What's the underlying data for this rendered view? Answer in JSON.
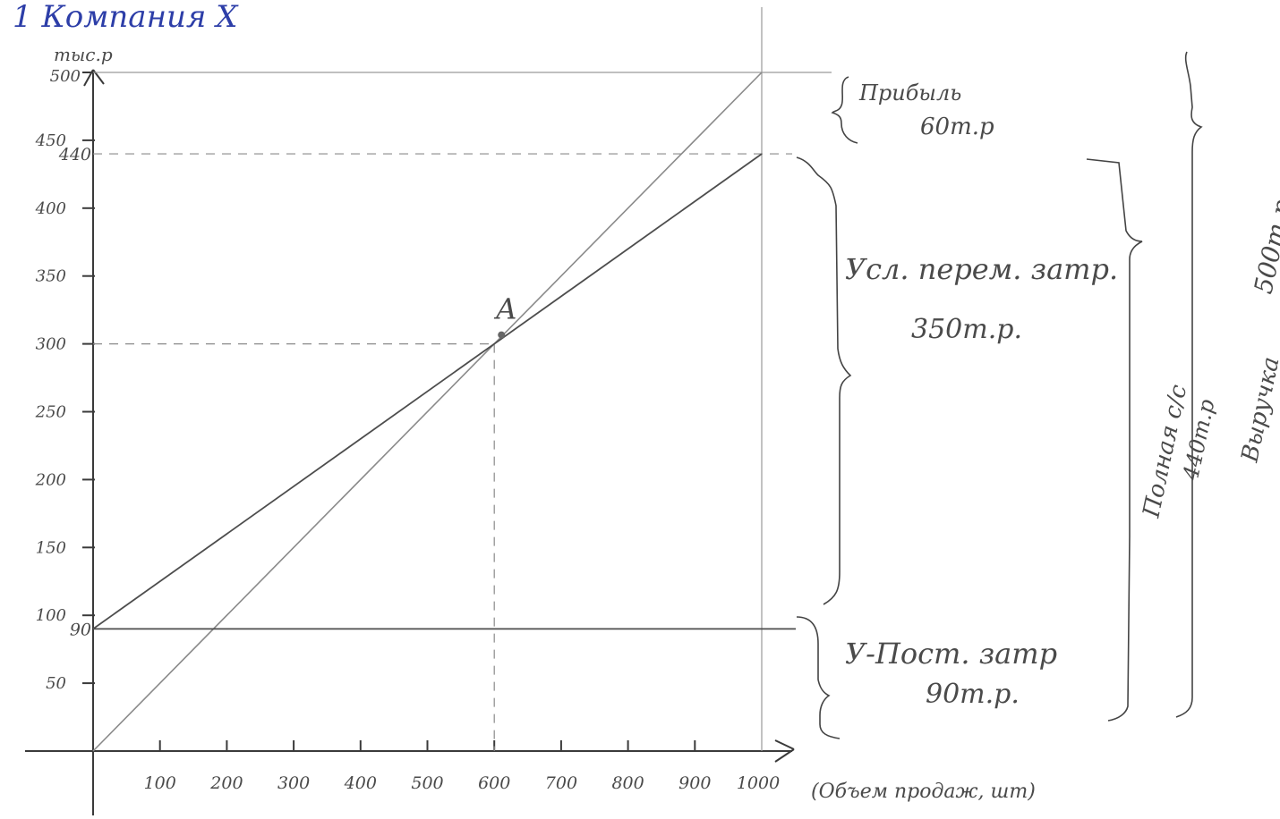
{
  "page_title": "1  Компания X",
  "chart_data": {
    "type": "line",
    "ylabel": "тыс.р",
    "xlabel": "(Объем продаж, шт)",
    "xlim": [
      0,
      1000
    ],
    "ylim": [
      0,
      500
    ],
    "x_ticks": [
      {
        "value": 100,
        "label": "100"
      },
      {
        "value": 200,
        "label": "200"
      },
      {
        "value": 300,
        "label": "300"
      },
      {
        "value": 400,
        "label": "400"
      },
      {
        "value": 500,
        "label": "500"
      },
      {
        "value": 600,
        "label": "600"
      },
      {
        "value": 700,
        "label": "700"
      },
      {
        "value": 800,
        "label": "800"
      },
      {
        "value": 900,
        "label": "900"
      },
      {
        "value": 1000,
        "label": "1000"
      }
    ],
    "y_ticks": [
      {
        "value": 50,
        "label": "50"
      },
      {
        "value": 100,
        "label": "100"
      },
      {
        "value": 150,
        "label": "150"
      },
      {
        "value": 200,
        "label": "200"
      },
      {
        "value": 250,
        "label": "250"
      },
      {
        "value": 300,
        "label": "300"
      },
      {
        "value": 350,
        "label": "350"
      },
      {
        "value": 400,
        "label": "400"
      },
      {
        "value": 450,
        "label": "450"
      },
      {
        "value": 500,
        "label": "500"
      }
    ],
    "y_marks": [
      {
        "value": 90,
        "label": "90"
      },
      {
        "value": 440,
        "label": "440"
      }
    ],
    "series": [
      {
        "x": [
          0,
          1000
        ],
        "y": [
          0,
          500
        ]
      },
      {
        "x": [
          0,
          1000
        ],
        "y": [
          90,
          440
        ]
      },
      {
        "x": [
          0,
          1000
        ],
        "y": [
          90,
          90
        ]
      }
    ],
    "point": {
      "label": "A",
      "x": 600,
      "y": 300
    },
    "annotations": {
      "profit": [
        "Прибыль",
        "60т.р"
      ],
      "variable_costs": [
        "Усл. перем. затр.",
        "350т.р."
      ],
      "fixed_costs": [
        "У-Пост. затр",
        "90т.р."
      ],
      "full_cost": [
        "Полная с/с",
        "440т.р"
      ],
      "revenue": [
        "Выручка",
        "500т.р"
      ]
    }
  }
}
